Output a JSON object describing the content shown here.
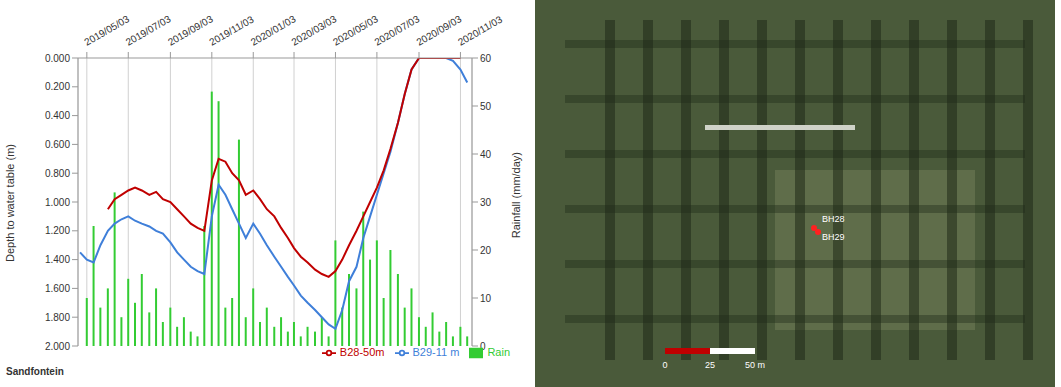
{
  "chart_data": {
    "type": "line",
    "annotations": [
      "Sandfontein"
    ],
    "y_label": "Depth to water table (m)",
    "y2_label": "Rainfall (mm/day)",
    "grid": true,
    "legend": "bottom",
    "x": [
      "2019/04/23",
      "2019/05/03",
      "2019/05/13",
      "2019/05/23",
      "2019/06/03",
      "2019/06/13",
      "2019/06/23",
      "2019/07/03",
      "2019/07/13",
      "2019/07/23",
      "2019/08/03",
      "2019/08/13",
      "2019/08/23",
      "2019/09/03",
      "2019/09/13",
      "2019/09/23",
      "2019/10/03",
      "2019/10/13",
      "2019/10/23",
      "2019/11/03",
      "2019/11/13",
      "2019/11/23",
      "2019/12/03",
      "2019/12/13",
      "2019/12/23",
      "2020/01/03",
      "2020/01/13",
      "2020/01/23",
      "2020/02/03",
      "2020/02/13",
      "2020/02/23",
      "2020/03/03",
      "2020/03/13",
      "2020/03/23",
      "2020/04/03",
      "2020/04/13",
      "2020/04/23",
      "2020/05/03",
      "2020/05/13",
      "2020/05/23",
      "2020/06/03",
      "2020/06/13",
      "2020/06/23",
      "2020/07/03",
      "2020/07/13",
      "2020/07/23",
      "2020/08/03",
      "2020/08/13",
      "2020/08/23",
      "2020/09/03",
      "2020/09/13",
      "2020/09/23",
      "2020/10/03",
      "2020/10/13",
      "2020/10/23",
      "2020/11/03",
      "2020/11/13"
    ],
    "xlim": [
      "2019/04/20",
      "2020/11/20"
    ],
    "xticks": [
      "2019/05/03",
      "2019/07/03",
      "2019/09/03",
      "2019/11/03",
      "2020/01/03",
      "2020/03/03",
      "2020/05/03",
      "2020/07/03",
      "2020/09/03",
      "2020/11/03"
    ],
    "ylim": [
      0,
      2
    ],
    "yticks": [
      {
        "value": 0,
        "label": "0.000"
      },
      {
        "value": 0.2,
        "label": "0.200"
      },
      {
        "value": 0.4,
        "label": "0.400"
      },
      {
        "value": 0.6,
        "label": "0.600"
      },
      {
        "value": 0.8,
        "label": "0.800"
      },
      {
        "value": 1,
        "label": "1.000"
      },
      {
        "value": 1.2,
        "label": "1.200"
      },
      {
        "value": 1.4,
        "label": "1.400"
      },
      {
        "value": 1.6,
        "label": "1.600"
      },
      {
        "value": 1.8,
        "label": "1.800"
      },
      {
        "value": 2,
        "label": "2.000"
      }
    ],
    "y2lim": [
      0,
      60
    ],
    "y2ticks": [
      0,
      10,
      20,
      30,
      40,
      50,
      60
    ],
    "series": [
      {
        "name": "B29-11 m",
        "type": "line",
        "color": "#3f7fd9",
        "values": [
          1.35,
          1.4,
          1.42,
          1.3,
          1.2,
          1.15,
          1.12,
          1.1,
          1.13,
          1.15,
          1.17,
          1.2,
          1.22,
          1.28,
          1.35,
          1.4,
          1.45,
          1.48,
          1.5,
          1.1,
          0.88,
          0.95,
          1.05,
          1.15,
          1.25,
          1.15,
          1.22,
          1.3,
          1.38,
          1.45,
          1.52,
          1.58,
          1.65,
          1.7,
          1.75,
          1.8,
          1.85,
          1.88,
          1.75,
          1.55,
          1.45,
          1.25,
          1.1,
          0.95,
          0.8,
          0.65,
          0.45,
          0.25,
          0.08,
          0.0,
          0.0,
          0.0,
          0.0,
          0.0,
          0.02,
          0.08,
          0.17
        ]
      },
      {
        "name": "B28-50m",
        "type": "line",
        "color": "#c00000",
        "values": [
          null,
          null,
          null,
          null,
          1.05,
          0.98,
          0.95,
          0.92,
          0.9,
          0.92,
          0.95,
          0.93,
          0.98,
          1.0,
          1.05,
          1.1,
          1.15,
          1.18,
          1.2,
          0.85,
          0.7,
          0.72,
          0.8,
          0.85,
          0.95,
          0.92,
          0.98,
          1.05,
          1.1,
          1.18,
          1.25,
          1.32,
          1.38,
          1.42,
          1.47,
          1.5,
          1.52,
          1.48,
          1.4,
          1.3,
          1.2,
          1.1,
          1.0,
          0.9,
          0.78,
          0.63,
          0.45,
          0.25,
          0.08,
          0.0,
          0.0,
          0.0,
          0.0,
          0.0,
          0.0,
          0.0,
          null
        ]
      },
      {
        "name": "Rain",
        "type": "bar",
        "axis": "y2",
        "color": "#33cc33",
        "values": [
          0,
          10,
          25,
          8,
          12,
          32,
          6,
          14,
          9,
          15,
          7,
          12,
          5,
          8,
          4,
          6,
          3,
          2,
          25,
          53,
          51,
          8,
          10,
          43,
          6,
          12,
          5,
          8,
          4,
          6,
          3,
          5,
          2,
          4,
          3,
          6,
          2,
          22,
          8,
          15,
          12,
          28,
          18,
          22,
          10,
          20,
          15,
          8,
          12,
          6,
          4,
          7,
          3,
          5,
          2,
          4,
          2
        ]
      }
    ]
  },
  "map": {
    "labels": [
      "BH28",
      "BH29"
    ],
    "scale_bar": [
      "0",
      "25",
      "50 m"
    ]
  }
}
